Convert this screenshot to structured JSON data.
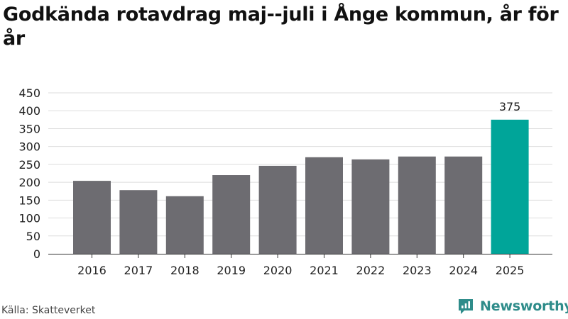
{
  "title": "Godkända rotavdrag maj--juli i Ånge kommun, år för år",
  "source": "Källa: Skatteverket",
  "brand": {
    "name": "Newsworthy",
    "icon": "newsworthy-logo-icon",
    "color": "#2e8c8a"
  },
  "colors": {
    "bar": "#6d6c71",
    "highlight": "#00a599",
    "grid": "#dddddd",
    "axis": "#333333"
  },
  "chart_data": {
    "type": "bar",
    "categories": [
      "2016",
      "2017",
      "2018",
      "2019",
      "2020",
      "2021",
      "2022",
      "2023",
      "2024",
      "2025"
    ],
    "values": [
      204,
      178,
      161,
      220,
      246,
      270,
      264,
      272,
      272,
      375
    ],
    "highlight_index": 9,
    "highlight_label": "375",
    "yticks": [
      0,
      50,
      100,
      150,
      200,
      250,
      300,
      350,
      400,
      450
    ],
    "ylim": [
      0,
      450
    ],
    "title": "Godkända rotavdrag maj--juli i Ånge kommun, år för år",
    "xlabel": "",
    "ylabel": "",
    "grid": true,
    "legend": "none"
  }
}
